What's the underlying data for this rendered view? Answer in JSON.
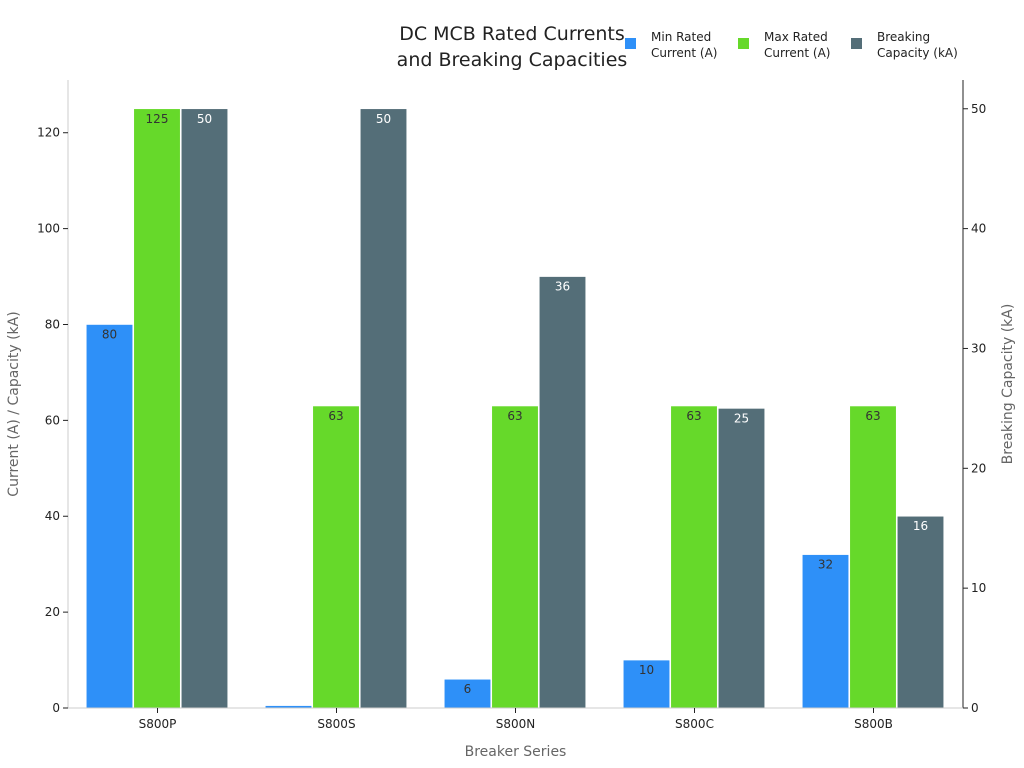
{
  "chart_data": {
    "type": "bar",
    "title": "DC MCB Rated Currents and Breaking Capacities",
    "title_lines": [
      "DC MCB Rated Currents",
      "and Breaking Capacities"
    ],
    "xlabel": "Breaker Series",
    "ylabel": "Current (A) / Capacity (kA)",
    "ylabel_right": "Breaking Capacity (kA)",
    "categories": [
      "S800P",
      "S800S",
      "S800N",
      "S800C",
      "S800B"
    ],
    "ylim": [
      0,
      131
    ],
    "ylim_right": [
      0,
      52.4
    ],
    "yticks": [
      0,
      20,
      40,
      60,
      80,
      100,
      120
    ],
    "yticks_right": [
      0,
      10,
      20,
      30,
      40,
      50
    ],
    "grid": false,
    "legend_position": "top-right",
    "series": [
      {
        "name": "Min Rated Current (A)",
        "legend_lines": [
          "Min Rated",
          "Current (A)"
        ],
        "values": [
          80,
          0.5,
          6,
          10,
          32
        ],
        "labels": [
          "80",
          "",
          "6",
          "10",
          "32"
        ],
        "color": "#2e90f8",
        "axis": "left",
        "label_color": "#333333"
      },
      {
        "name": "Max Rated Current (A)",
        "legend_lines": [
          "Max Rated",
          "Current (A)"
        ],
        "values": [
          125,
          63,
          63,
          63,
          63
        ],
        "labels": [
          "125",
          "63",
          "63",
          "63",
          "63"
        ],
        "color": "#66d92a",
        "axis": "left",
        "label_color": "#333333"
      },
      {
        "name": "Breaking Capacity (kA)",
        "legend_lines": [
          "Breaking",
          "Capacity (kA)"
        ],
        "values": [
          50,
          50,
          36,
          25,
          16
        ],
        "labels": [
          "50",
          "50",
          "36",
          "25",
          "16"
        ],
        "color": "#546e78",
        "axis": "right",
        "label_color": "#ffffff"
      }
    ]
  }
}
